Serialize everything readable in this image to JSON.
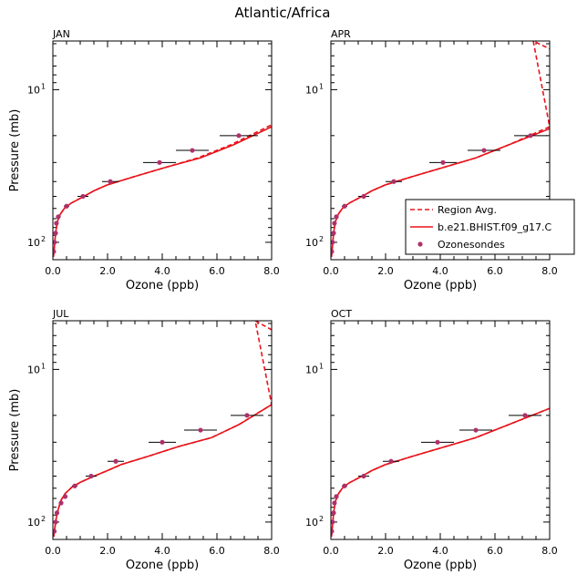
{
  "figure_title": "Atlantic/Africa",
  "colors": {
    "model": "#e8131b",
    "marker": "#b0306a",
    "errorbar": "#000000"
  },
  "chart_data": [
    {
      "type": "line",
      "panel_label": "JAN",
      "xlabel": "Ozone (ppb)",
      "ylabel": "Pressure (mb)",
      "xlim": [
        0,
        8
      ],
      "ylim": [
        130,
        4.8
      ],
      "yscale": "log",
      "x_ticks": [
        "0.0",
        "2.0",
        "4.0",
        "6.0",
        "8.0"
      ],
      "y_tick_labels": [
        {
          "value": 10,
          "label": "10",
          "exp": "1"
        },
        {
          "value": 100,
          "label": "10",
          "exp": "2"
        }
      ],
      "series": [
        {
          "name": "Region Avg.",
          "style": "dashed",
          "x": [
            0.02,
            0.05,
            0.08,
            0.12,
            0.18,
            0.28,
            0.45,
            0.7,
            1.05,
            1.5,
            2.0,
            3.0,
            4.2,
            5.3,
            6.5,
            8.0
          ],
          "y": [
            125,
            110,
            95,
            82,
            72,
            65,
            59,
            55,
            51,
            46,
            42,
            37,
            32,
            28,
            23,
            17
          ]
        },
        {
          "name": "b.e21.BHIST.f09_g17.C",
          "style": "solid",
          "x": [
            0.02,
            0.05,
            0.08,
            0.12,
            0.18,
            0.28,
            0.45,
            0.7,
            1.05,
            1.5,
            2.0,
            3.0,
            4.2,
            5.4,
            6.6,
            8.0
          ],
          "y": [
            125,
            110,
            95,
            82,
            72,
            65,
            59,
            55,
            51,
            46,
            42,
            37,
            32,
            28,
            23,
            17.5
          ]
        },
        {
          "name": "Ozonesondes",
          "style": "markers",
          "x": [
            0.03,
            0.06,
            0.1,
            0.13,
            0.2,
            0.5,
            1.1,
            2.1,
            3.9,
            5.1,
            6.8
          ],
          "y": [
            115,
            100,
            87,
            75,
            68,
            58,
            50,
            40,
            30,
            25,
            20
          ],
          "xerr": [
            0.01,
            0.01,
            0.02,
            0.02,
            0.05,
            0.1,
            0.2,
            0.3,
            0.6,
            0.6,
            0.7
          ]
        }
      ]
    },
    {
      "type": "line",
      "panel_label": "APR",
      "xlabel": "Ozone (ppb)",
      "ylabel": "",
      "xlim": [
        0,
        8
      ],
      "ylim": [
        130,
        4.8
      ],
      "yscale": "log",
      "x_ticks": [
        "0.0",
        "2.0",
        "4.0",
        "6.0",
        "8.0"
      ],
      "y_tick_labels": [
        {
          "value": 10,
          "label": "10",
          "exp": "1"
        },
        {
          "value": 100,
          "label": "10",
          "exp": "2"
        }
      ],
      "legend": [
        {
          "label": "Region Avg.",
          "style": "dashed"
        },
        {
          "label": "b.e21.BHIST.f09_g17.C",
          "style": "solid"
        },
        {
          "label": "Ozonesondes",
          "style": "markers"
        }
      ],
      "series": [
        {
          "name": "Region Avg.",
          "style": "dashed",
          "x": [
            0.02,
            0.05,
            0.08,
            0.12,
            0.18,
            0.28,
            0.45,
            0.7,
            1.05,
            1.5,
            2.0,
            3.0,
            4.2,
            5.3,
            6.5,
            8.0,
            7.4,
            8.0
          ],
          "y": [
            125,
            110,
            95,
            82,
            72,
            65,
            59,
            55,
            51,
            46,
            42,
            37,
            32,
            28,
            23,
            17.5,
            4.8,
            5.4
          ]
        },
        {
          "name": "b.e21.BHIST.f09_g17.C",
          "style": "solid",
          "x": [
            0.02,
            0.05,
            0.08,
            0.12,
            0.18,
            0.28,
            0.45,
            0.7,
            1.05,
            1.5,
            2.0,
            3.0,
            4.2,
            5.3,
            6.5,
            8.0
          ],
          "y": [
            125,
            110,
            95,
            82,
            72,
            65,
            59,
            55,
            51,
            46,
            42,
            37,
            32,
            28,
            23,
            18
          ]
        },
        {
          "name": "Ozonesondes",
          "style": "markers",
          "x": [
            0.03,
            0.06,
            0.1,
            0.13,
            0.2,
            0.5,
            1.2,
            2.3,
            4.1,
            5.6,
            7.3
          ],
          "y": [
            115,
            100,
            87,
            75,
            68,
            58,
            50,
            40,
            30,
            25,
            20
          ],
          "xerr": [
            0.01,
            0.01,
            0.02,
            0.02,
            0.05,
            0.1,
            0.2,
            0.3,
            0.5,
            0.6,
            0.6
          ]
        }
      ]
    },
    {
      "type": "line",
      "panel_label": "JUL",
      "xlabel": "Ozone (ppb)",
      "ylabel": "Pressure (mb)",
      "xlim": [
        0,
        8
      ],
      "ylim": [
        130,
        4.8
      ],
      "yscale": "log",
      "x_ticks": [
        "0.0",
        "2.0",
        "4.0",
        "6.0",
        "8.0"
      ],
      "y_tick_labels": [
        {
          "value": 10,
          "label": "10",
          "exp": "1"
        },
        {
          "value": 100,
          "label": "10",
          "exp": "2"
        }
      ],
      "series": [
        {
          "name": "Region Avg.",
          "style": "dashed",
          "x": [
            0.03,
            0.07,
            0.12,
            0.2,
            0.3,
            0.45,
            0.7,
            1.0,
            1.4,
            2.0,
            2.5,
            3.5,
            4.6,
            5.8,
            6.8,
            8.0,
            7.4,
            8.0
          ],
          "y": [
            125,
            110,
            95,
            82,
            72,
            65,
            59,
            55,
            51,
            46,
            42,
            37,
            32,
            28,
            23,
            17,
            4.8,
            5.5
          ]
        },
        {
          "name": "b.e21.BHIST.f09_g17.C",
          "style": "solid",
          "x": [
            0.03,
            0.07,
            0.12,
            0.2,
            0.3,
            0.45,
            0.7,
            1.0,
            1.4,
            2.0,
            2.5,
            3.5,
            4.6,
            5.8,
            6.8,
            8.0
          ],
          "y": [
            125,
            110,
            95,
            82,
            72,
            65,
            59,
            55,
            51,
            46,
            42,
            37,
            32,
            28,
            23,
            17
          ]
        },
        {
          "name": "Ozonesondes",
          "style": "markers",
          "x": [
            0.05,
            0.1,
            0.15,
            0.3,
            0.45,
            0.8,
            1.4,
            2.3,
            4.0,
            5.4,
            7.1
          ],
          "y": [
            115,
            100,
            87,
            75,
            68,
            58,
            50,
            40,
            30,
            25,
            20
          ],
          "xerr": [
            0.01,
            0.02,
            0.03,
            0.05,
            0.08,
            0.1,
            0.2,
            0.3,
            0.5,
            0.6,
            0.6
          ]
        }
      ]
    },
    {
      "type": "line",
      "panel_label": "OCT",
      "xlabel": "Ozone (ppb)",
      "ylabel": "",
      "xlim": [
        0,
        8
      ],
      "ylim": [
        130,
        4.8
      ],
      "yscale": "log",
      "x_ticks": [
        "0.0",
        "2.0",
        "4.0",
        "6.0",
        "8.0"
      ],
      "y_tick_labels": [
        {
          "value": 10,
          "label": "10",
          "exp": "1"
        },
        {
          "value": 100,
          "label": "10",
          "exp": "2"
        }
      ],
      "series": [
        {
          "name": "Region Avg.",
          "style": "dashed",
          "x": [
            0.02,
            0.05,
            0.08,
            0.12,
            0.18,
            0.28,
            0.45,
            0.7,
            1.05,
            1.5,
            2.0,
            3.0,
            4.2,
            5.3,
            6.5,
            8.0
          ],
          "y": [
            125,
            110,
            95,
            82,
            72,
            65,
            59,
            55,
            51,
            46,
            42,
            37,
            32,
            28,
            23,
            18
          ]
        },
        {
          "name": "b.e21.BHIST.f09_g17.C",
          "style": "solid",
          "x": [
            0.02,
            0.05,
            0.08,
            0.12,
            0.18,
            0.28,
            0.45,
            0.7,
            1.05,
            1.5,
            2.0,
            3.0,
            4.2,
            5.3,
            6.5,
            8.0
          ],
          "y": [
            125,
            110,
            95,
            82,
            72,
            65,
            59,
            55,
            51,
            46,
            42,
            37,
            32,
            28,
            23,
            18
          ]
        },
        {
          "name": "Ozonesondes",
          "style": "markers",
          "x": [
            0.03,
            0.06,
            0.1,
            0.13,
            0.2,
            0.5,
            1.2,
            2.2,
            3.9,
            5.3,
            7.1
          ],
          "y": [
            115,
            100,
            87,
            75,
            68,
            58,
            50,
            40,
            30,
            25,
            20
          ],
          "xerr": [
            0.01,
            0.01,
            0.02,
            0.02,
            0.05,
            0.1,
            0.2,
            0.3,
            0.6,
            0.6,
            0.6
          ]
        }
      ]
    }
  ]
}
